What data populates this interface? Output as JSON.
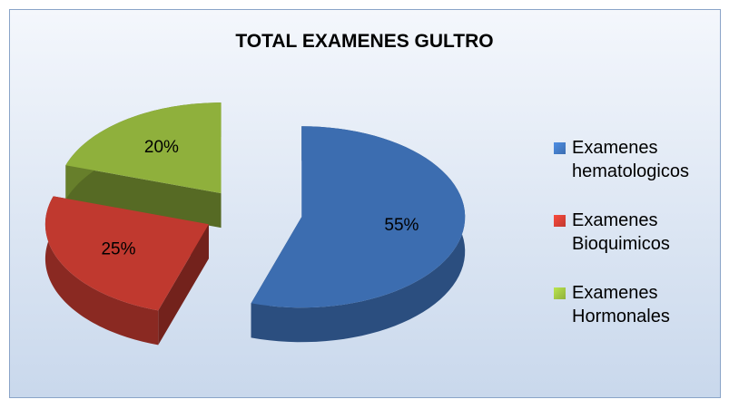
{
  "chart_data": {
    "type": "pie",
    "title": "TOTAL EXAMENES GULTRO",
    "categories": [
      "Examenes hematologicos",
      "Examenes Bioquimicos",
      "Examenes Hormonales"
    ],
    "values": [
      55,
      25,
      20
    ],
    "value_labels": [
      "55%",
      "25%",
      "20%"
    ],
    "colors": [
      "#3c6db0",
      "#c0392f",
      "#8fb03c"
    ],
    "legend": "right"
  }
}
